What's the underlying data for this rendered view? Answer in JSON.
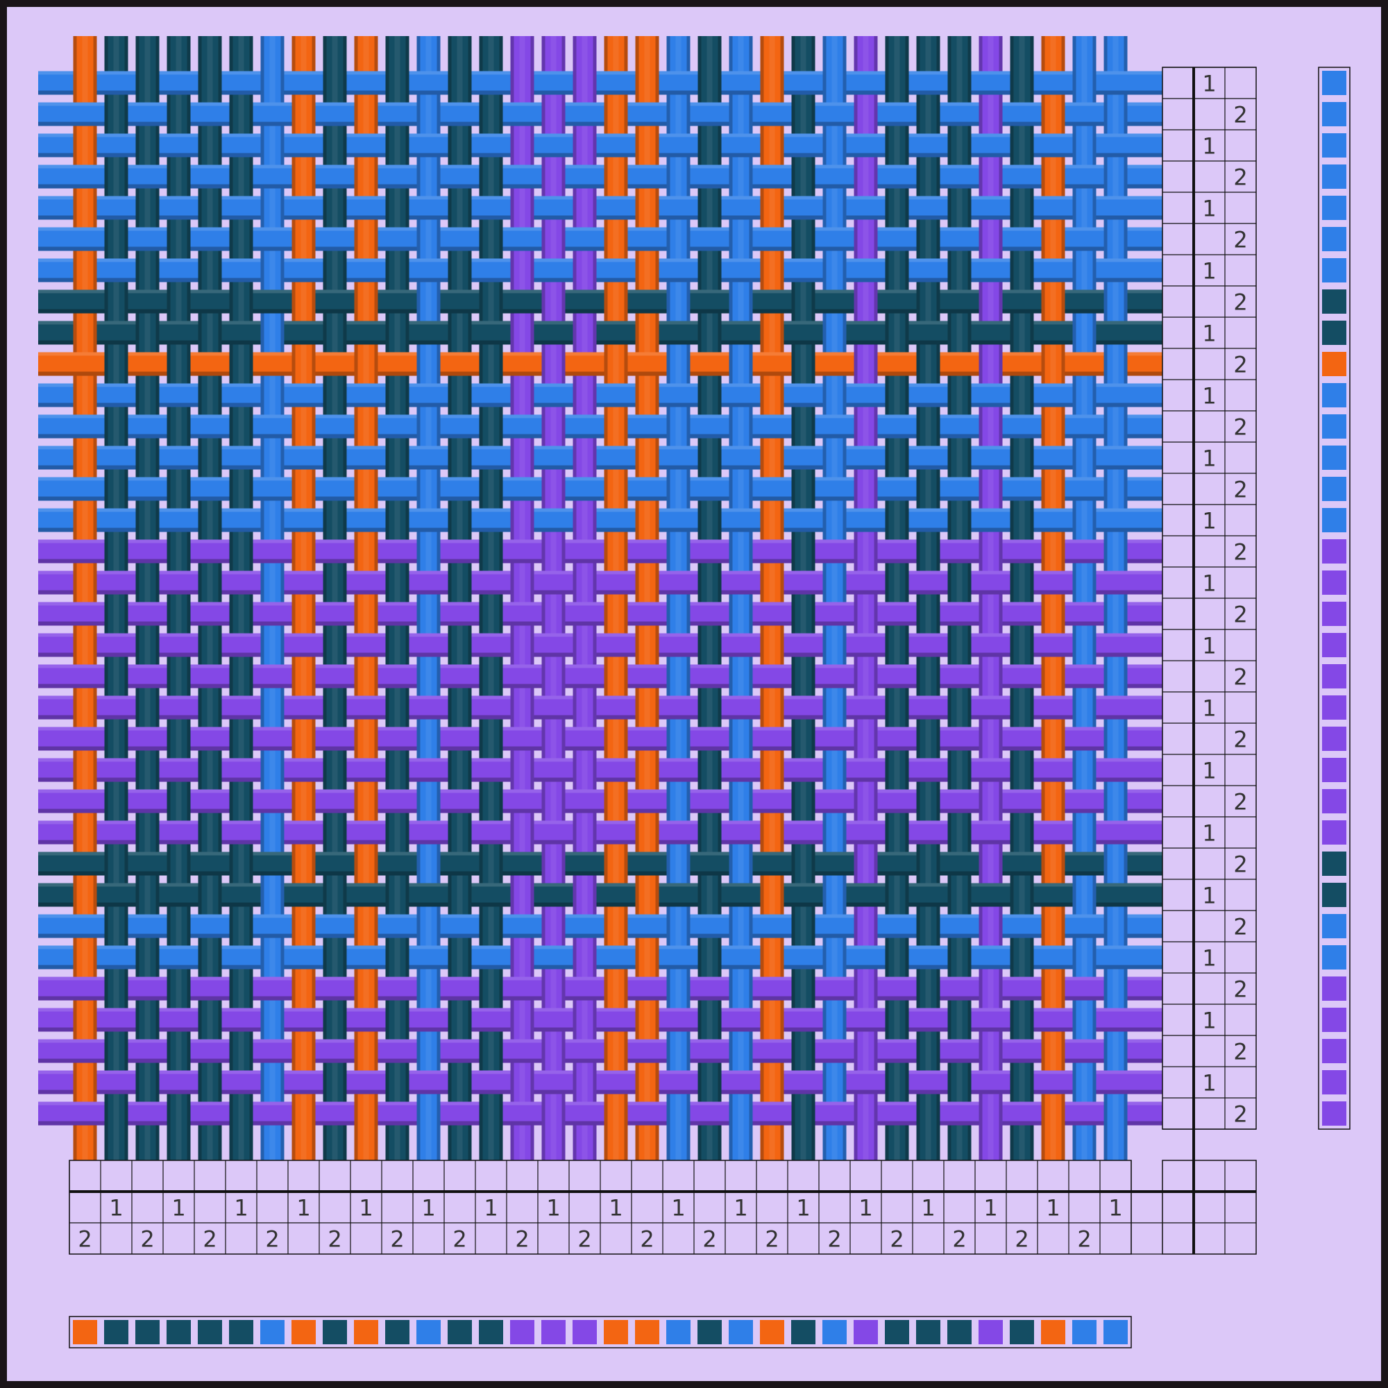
{
  "palette": {
    "background": "#dcc8f8",
    "orange": "#f36512",
    "navy": "#144d63",
    "blue": "#2f7fe8",
    "purple": "#8448e6",
    "grid_line": "#111111",
    "label_text": "#333333"
  },
  "warp_colors": [
    "orange",
    "navy",
    "navy",
    "navy",
    "navy",
    "navy",
    "blue",
    "orange",
    "navy",
    "orange",
    "navy",
    "blue",
    "navy",
    "navy",
    "purple",
    "purple",
    "purple",
    "orange",
    "orange",
    "blue",
    "navy",
    "blue",
    "orange",
    "navy",
    "blue",
    "purple",
    "navy",
    "navy",
    "navy",
    "purple",
    "navy",
    "orange",
    "blue",
    "blue"
  ],
  "weft_colors": [
    "blue",
    "blue",
    "blue",
    "blue",
    "blue",
    "blue",
    "blue",
    "navy",
    "navy",
    "orange",
    "blue",
    "blue",
    "blue",
    "blue",
    "blue",
    "purple",
    "purple",
    "purple",
    "purple",
    "purple",
    "purple",
    "purple",
    "purple",
    "purple",
    "purple",
    "navy",
    "navy",
    "blue",
    "blue",
    "purple",
    "purple",
    "purple",
    "purple",
    "purple"
  ],
  "threading": [
    "2",
    "1",
    "2",
    "1",
    "2",
    "1",
    "2",
    "1",
    "2",
    "1",
    "2",
    "1",
    "2",
    "1",
    "2",
    "1",
    "2",
    "1",
    "2",
    "1",
    "2",
    "1",
    "2",
    "1",
    "2",
    "1",
    "2",
    "1",
    "2",
    "1",
    "2",
    "1",
    "2",
    "1"
  ],
  "treadling": [
    "1",
    "2",
    "1",
    "2",
    "1",
    "2",
    "1",
    "2",
    "1",
    "2",
    "1",
    "2",
    "1",
    "2",
    "1",
    "2",
    "1",
    "2",
    "1",
    "2",
    "1",
    "2",
    "1",
    "2",
    "1",
    "2",
    "1",
    "2",
    "1",
    "2",
    "1",
    "2",
    "1",
    "2"
  ]
}
